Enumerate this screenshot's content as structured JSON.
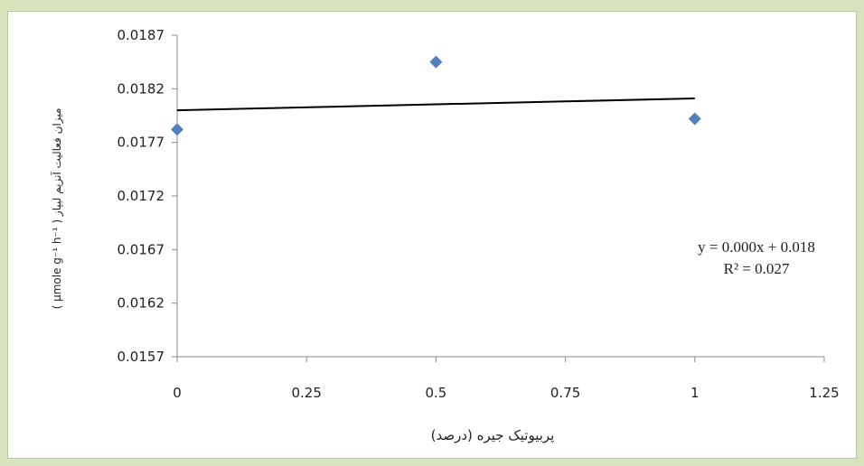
{
  "chart_data": {
    "type": "scatter",
    "xlabel": "پربیوتیک جیره (درصد)",
    "ylabel": "میزان فعالیت آنزیم لیپاز ( µmole g⁻¹ h⁻¹ )",
    "xlim": [
      0,
      1.25
    ],
    "ylim": [
      0.0157,
      0.0187
    ],
    "x_ticks": [
      "0",
      "0.25",
      "0.5",
      "0.75",
      "1",
      "1.25"
    ],
    "y_ticks": [
      "0.0187",
      "0.0182",
      "0.0177",
      "0.0172",
      "0.0167",
      "0.0162",
      "0.0157"
    ],
    "points": [
      {
        "x": 0,
        "y": 0.01782
      },
      {
        "x": 0.5,
        "y": 0.01845
      },
      {
        "x": 1,
        "y": 0.01792
      }
    ],
    "trendline": {
      "x": [
        0,
        1
      ],
      "y": [
        0.018,
        0.01811
      ]
    },
    "equation": "y = 0.000x + 0.018",
    "r_squared": "R² = 0.027",
    "marker_color": "#4f81bd",
    "line_color": "#000000",
    "grid": false
  }
}
